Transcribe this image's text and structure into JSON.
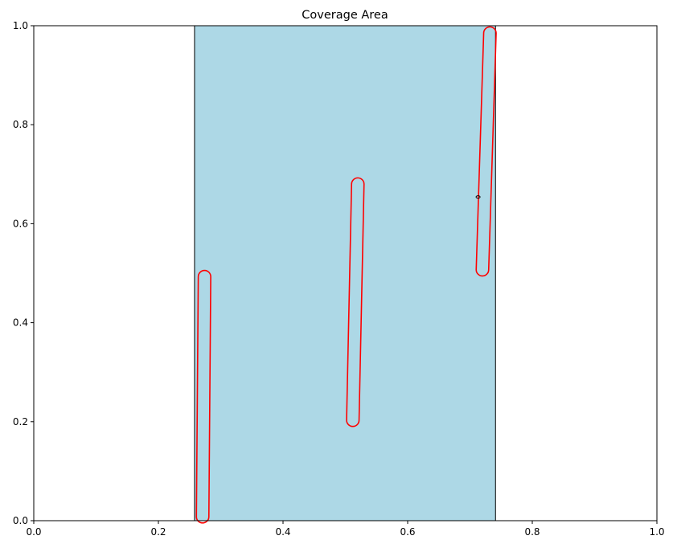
{
  "chart_data": {
    "type": "area",
    "title": "Coverage Area",
    "xlabel": "",
    "ylabel": "",
    "xlim": [
      0,
      1
    ],
    "ylim": [
      0,
      1
    ],
    "grid": false,
    "xticks": [
      "0.0",
      "0.2",
      "0.4",
      "0.6",
      "0.8",
      "1.0"
    ],
    "yticks": [
      "0.0",
      "0.2",
      "0.4",
      "0.6",
      "0.8",
      "1.0"
    ],
    "coverage_region": {
      "x_range": [
        0.258,
        0.741
      ],
      "y_range": [
        0,
        1
      ],
      "fill_color": "#add8e6",
      "edge_color": "#000000"
    },
    "shapes": [
      {
        "type": "stadium",
        "x1": 0.271,
        "y1": 0.008,
        "x2": 0.274,
        "y2": 0.493,
        "width": 0.02,
        "color": "#ff0000"
      },
      {
        "type": "stadium",
        "x1": 0.512,
        "y1": 0.203,
        "x2": 0.52,
        "y2": 0.68,
        "width": 0.02,
        "color": "#ff0000"
      },
      {
        "type": "stadium",
        "x1": 0.72,
        "y1": 0.507,
        "x2": 0.732,
        "y2": 0.985,
        "width": 0.02,
        "color": "#ff0000"
      }
    ],
    "marker": {
      "x": 0.713,
      "y": 0.654,
      "color": "#000000"
    }
  }
}
